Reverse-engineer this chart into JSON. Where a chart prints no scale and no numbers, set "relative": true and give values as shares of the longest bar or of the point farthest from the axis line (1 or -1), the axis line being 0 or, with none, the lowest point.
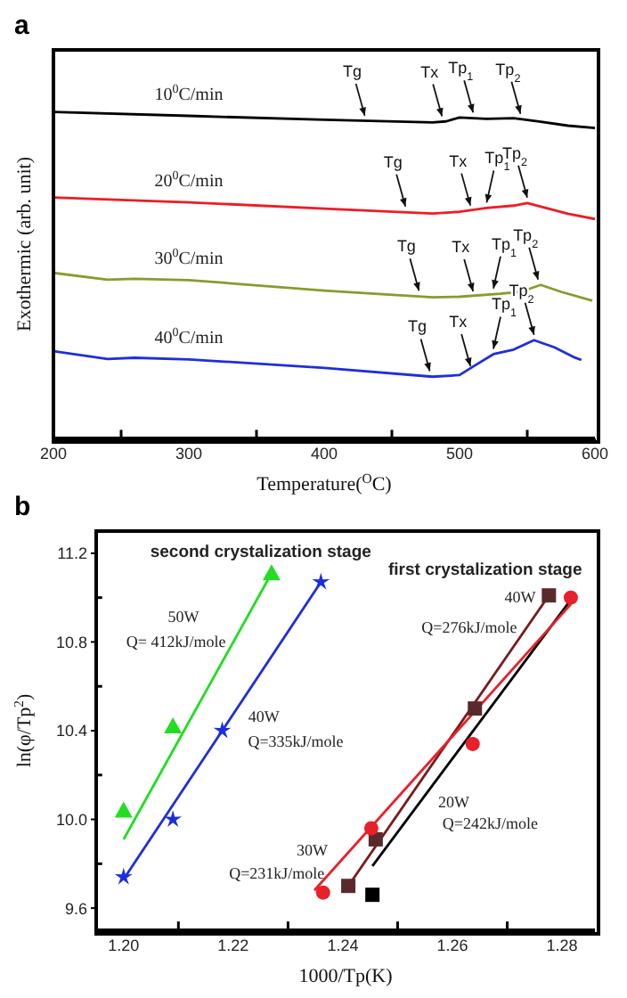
{
  "chart_data": [
    {
      "type": "line",
      "title": "a",
      "xlabel": "Temperature($^{O}$C)",
      "ylabel": "Exothermic (arb. unit)",
      "relative": true,
      "tick_labels": "x",
      "xlim": [
        200,
        600
      ],
      "xticks": [
        200,
        {
          "value": 250,
          "label": null
        },
        300,
        {
          "value": 350,
          "label": null
        },
        400,
        {
          "value": 450,
          "label": null
        },
        500,
        {
          "value": 550,
          "label": null
        },
        600
      ],
      "series": [
        {
          "name": "10$^{0}$C/min",
          "color": "#000000",
          "x": [
            200,
            300,
            400,
            480,
            490,
            500,
            520,
            540,
            560,
            580,
            600
          ],
          "values": [
            1.0,
            0.988,
            0.976,
            0.968,
            0.971,
            0.983,
            0.979,
            0.981,
            0.97,
            0.958,
            0.951
          ]
        },
        {
          "name": "20$^{0}$C/min",
          "color": "#ee1c25",
          "x": [
            200,
            300,
            400,
            480,
            500,
            520,
            540,
            550,
            560,
            580,
            600
          ],
          "values": [
            0.738,
            0.723,
            0.704,
            0.689,
            0.694,
            0.706,
            0.713,
            0.721,
            0.71,
            0.688,
            0.672
          ]
        },
        {
          "name": "30$^{0}$C/min",
          "color": "#8c9a2c",
          "x": [
            200,
            240,
            260,
            300,
            400,
            480,
            500,
            530,
            545,
            560,
            575,
            598
          ],
          "values": [
            0.507,
            0.486,
            0.489,
            0.485,
            0.453,
            0.432,
            0.434,
            0.443,
            0.449,
            0.47,
            0.449,
            0.422
          ]
        },
        {
          "name": "40$^{0}$C/min",
          "color": "#1f2fd8",
          "x": [
            200,
            240,
            260,
            300,
            400,
            480,
            500,
            510,
            525,
            540,
            555,
            570,
            585,
            590
          ],
          "values": [
            0.267,
            0.243,
            0.247,
            0.242,
            0.216,
            0.189,
            0.194,
            0.22,
            0.258,
            0.272,
            0.301,
            0.279,
            0.248,
            0.24
          ]
        }
      ],
      "annotations": [
        {
          "text": "Tg",
          "x": 430,
          "y": 0.972
        },
        {
          "text": "Tx",
          "x": 487,
          "y": 0.97
        },
        {
          "text": "Tp$_{1}$",
          "x": 510,
          "y": 0.982
        },
        {
          "text": "Tp$_{2}$",
          "x": 545,
          "y": 0.978
        },
        {
          "text": "Tg",
          "x": 460,
          "y": 0.694
        },
        {
          "text": "Tx",
          "x": 508,
          "y": 0.697
        },
        {
          "text": "Tp$_{1}$",
          "x": 520,
          "y": 0.706
        },
        {
          "text": "Tp$_{2}$",
          "x": 550,
          "y": 0.721
        },
        {
          "text": "Tg",
          "x": 470,
          "y": 0.436
        },
        {
          "text": "Tx",
          "x": 510,
          "y": 0.434
        },
        {
          "text": "Tp$_{1}$",
          "x": 525,
          "y": 0.443
        },
        {
          "text": "Tp$_{2}$",
          "x": 558,
          "y": 0.47
        },
        {
          "text": "Tg",
          "x": 478,
          "y": 0.19
        },
        {
          "text": "Tx",
          "x": 508,
          "y": 0.205
        },
        {
          "text": "Tp$_{1}$",
          "x": 525,
          "y": 0.258
        },
        {
          "text": "Tp$_{2}$",
          "x": 555,
          "y": 0.301
        }
      ]
    },
    {
      "type": "scatter",
      "title": "b",
      "xlabel": "1000/Tp(K)",
      "ylabel": "ln(φ/Tp$^{2}$)",
      "xlim": [
        1.195,
        1.286
      ],
      "xticks": [
        {
          "value": 1.2,
          "label": "1.20"
        },
        {
          "value": 1.21,
          "label": null
        },
        1.22,
        {
          "value": 1.23,
          "label": null
        },
        1.24,
        {
          "value": 1.25,
          "label": null
        },
        1.26,
        {
          "value": 1.27,
          "label": null
        },
        1.28
      ],
      "ylim": [
        9.5,
        11.3
      ],
      "yticks": [
        9.6,
        {
          "value": 9.8,
          "label": null
        },
        {
          "value": 10,
          "label": "10.0"
        },
        {
          "value": 10.2,
          "label": null
        },
        10.4,
        {
          "value": 10.6,
          "label": null
        },
        10.8,
        {
          "value": 11.0,
          "label": null
        },
        11.2
      ],
      "series": [
        {
          "type": "scatter",
          "marker": "triangle",
          "color": "#22dd22",
          "x": [
            1.2,
            1.209,
            1.227
          ],
          "values": [
            10.04,
            10.42,
            11.11
          ]
        },
        {
          "type": "line",
          "color": "#22dd22",
          "x": [
            1.2,
            1.227
          ],
          "values": [
            9.91,
            11.11
          ]
        },
        {
          "type": "scatter",
          "marker": "star",
          "color": "#1a2de0",
          "x": [
            1.2,
            1.209,
            1.218,
            1.236
          ],
          "values": [
            9.74,
            10.0,
            10.4,
            11.07
          ]
        },
        {
          "type": "line",
          "color": "#1a2de0",
          "x": [
            1.2,
            1.236
          ],
          "values": [
            9.73,
            11.07
          ]
        },
        {
          "type": "line",
          "color": "#000000",
          "x": [
            1.2454,
            1.2816
          ],
          "values": [
            9.79,
            10.99
          ]
        },
        {
          "type": "scatter",
          "marker": "square",
          "color": "#000000",
          "x": [
            1.2454
          ],
          "values": [
            9.66
          ]
        },
        {
          "type": "line",
          "color": "#7a1a1a",
          "x": [
            1.241,
            1.2776
          ],
          "values": [
            9.7,
            11.01
          ]
        },
        {
          "type": "scatter",
          "marker": "square",
          "color": "#5a2a2a",
          "x": [
            1.241,
            1.246,
            1.2641,
            1.2776
          ],
          "values": [
            9.7,
            9.91,
            10.5,
            11.01
          ]
        },
        {
          "type": "line",
          "color": "#e8202a",
          "x": [
            1.2348,
            1.2816
          ],
          "values": [
            9.68,
            10.97
          ]
        },
        {
          "type": "scatter",
          "marker": "circle",
          "color": "#e8202a",
          "x": [
            1.2364,
            1.2452,
            1.2637,
            1.2816
          ],
          "values": [
            9.67,
            9.96,
            10.34,
            11.0
          ]
        }
      ],
      "annotations": [
        "second crystalization stage",
        "first crystalization stage",
        "50W",
        "Q= 412kJ/mole",
        "40W",
        "Q=335kJ/mole",
        "40W",
        "Q=276kJ/mole",
        "20W",
        "Q=242kJ/mole",
        "30W",
        "Q=231kJ/mole"
      ]
    }
  ]
}
